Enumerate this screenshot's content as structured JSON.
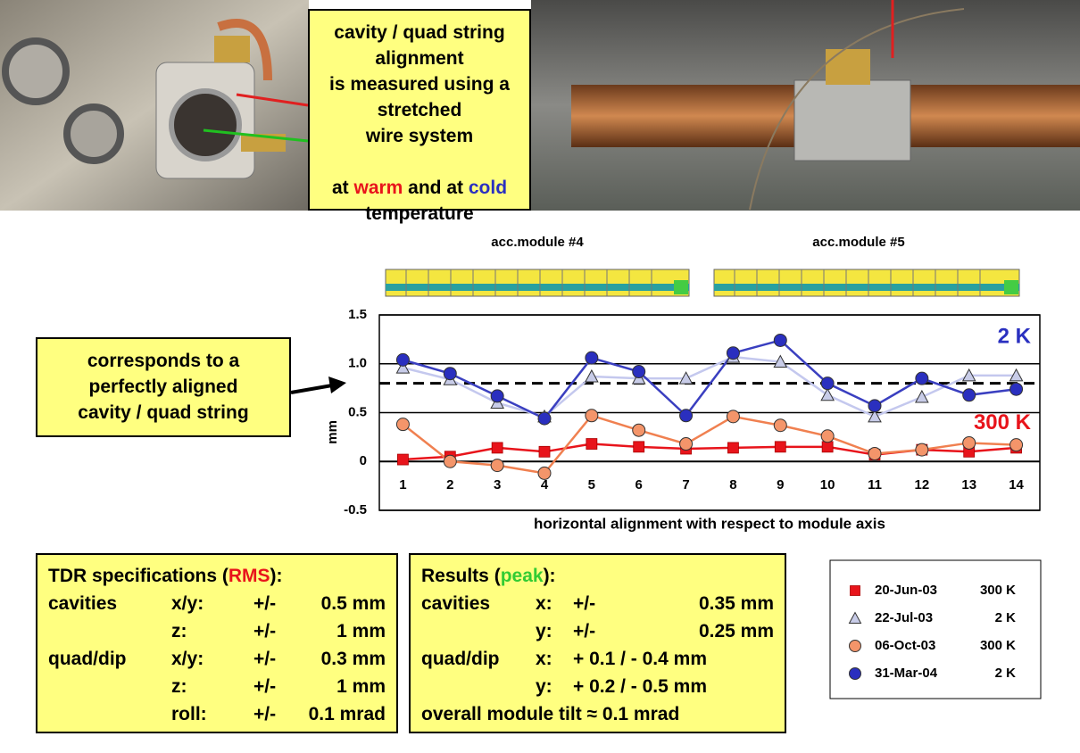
{
  "header": {
    "lines": [
      "cavity / quad string alignment",
      "is measured using a stretched",
      "wire system"
    ],
    "temperature_line": [
      "at ",
      "warm",
      " and at ",
      "cold"
    ],
    "temperature_word": "temperature"
  },
  "callout": {
    "lines": [
      "corresponds to a",
      "perfectly aligned",
      "cavity / quad string"
    ]
  },
  "chart_data": {
    "type": "line",
    "module_labels": [
      "acc.module #4",
      "acc.module #5"
    ],
    "x_label": "horizontal alignment with respect to module axis",
    "y_label": "mm",
    "categories": [
      "1",
      "2",
      "3",
      "4",
      "5",
      "6",
      "7",
      "8",
      "9",
      "10",
      "11",
      "12",
      "13",
      "14"
    ],
    "series": [
      {
        "name": "20-Jun-03",
        "temperature": "300 K",
        "marker": "square",
        "color": "#e8141b",
        "line_color": "#e8141b",
        "values": [
          0.02,
          0.05,
          0.14,
          0.1,
          0.18,
          0.15,
          0.13,
          0.14,
          0.15,
          0.15,
          0.07,
          0.12,
          0.1,
          0.14
        ]
      },
      {
        "name": "22-Jul-03",
        "temperature": "2 K",
        "marker": "triangle",
        "color": "#c8cce8",
        "line_color": "#c4c8ee",
        "values": [
          0.96,
          0.84,
          0.6,
          0.46,
          0.87,
          0.85,
          0.85,
          1.07,
          1.02,
          0.68,
          0.46,
          0.66,
          0.88,
          0.88
        ]
      },
      {
        "name": "06-Oct-03",
        "temperature": "300 K",
        "marker": "circle",
        "color": "#f4956a",
        "line_color": "#f08050",
        "values": [
          0.38,
          0.0,
          -0.04,
          -0.12,
          0.47,
          0.32,
          0.18,
          0.46,
          0.37,
          0.26,
          0.08,
          0.12,
          0.19,
          0.17
        ]
      },
      {
        "name": "31-Mar-04",
        "temperature": "2 K",
        "marker": "circle",
        "color": "#2a2fbf",
        "line_color": "#3a3fc0",
        "values": [
          1.04,
          0.9,
          0.67,
          0.44,
          1.06,
          0.92,
          0.47,
          1.11,
          1.24,
          0.8,
          0.57,
          0.85,
          0.68,
          0.74
        ]
      }
    ],
    "ylim": [
      -0.5,
      1.5
    ],
    "yticks": [
      -0.5,
      0,
      0.5,
      {
        "value": 1,
        "label": "1.0"
      },
      1.5
    ],
    "grid": true,
    "reference_line": 0.8,
    "annotations": [
      {
        "text": "2 K",
        "color": "#2a30c0"
      },
      {
        "text": "300 K",
        "color": "#e8141b"
      }
    ]
  },
  "specifications": {
    "title": [
      "TDR specifications (",
      "RMS",
      "):"
    ],
    "rows": [
      {
        "group": "cavities",
        "axis": "x/y:",
        "sign": "+/-",
        "value": "0.5 mm"
      },
      {
        "axis": "z:",
        "sign": "+/-",
        "value": "1 mm"
      },
      {
        "group": "quad/dip",
        "axis": "x/y:",
        "sign": "+/-",
        "value": "0.3 mm"
      },
      {
        "axis": "z:",
        "sign": "+/-",
        "value": "1 mm"
      },
      {
        "axis": "roll:",
        "sign": "+/-",
        "value": "0.1 mrad"
      }
    ]
  },
  "results": {
    "title": [
      "Results (",
      "peak",
      "):"
    ],
    "rows": [
      {
        "group": "cavities",
        "axis": "x:",
        "sign": "+/-",
        "value": "0.35 mm"
      },
      {
        "axis": "y:",
        "sign": "+/-",
        "value": "0.25 mm"
      },
      {
        "group": "quad/dip",
        "axis": "x:",
        "value": "+ 0.1 / - 0.4 mm"
      },
      {
        "axis": "y:",
        "value": "+ 0.2 / - 0.5 mm"
      }
    ],
    "footer": "overall module tilt ≈ 0.1 mrad"
  }
}
